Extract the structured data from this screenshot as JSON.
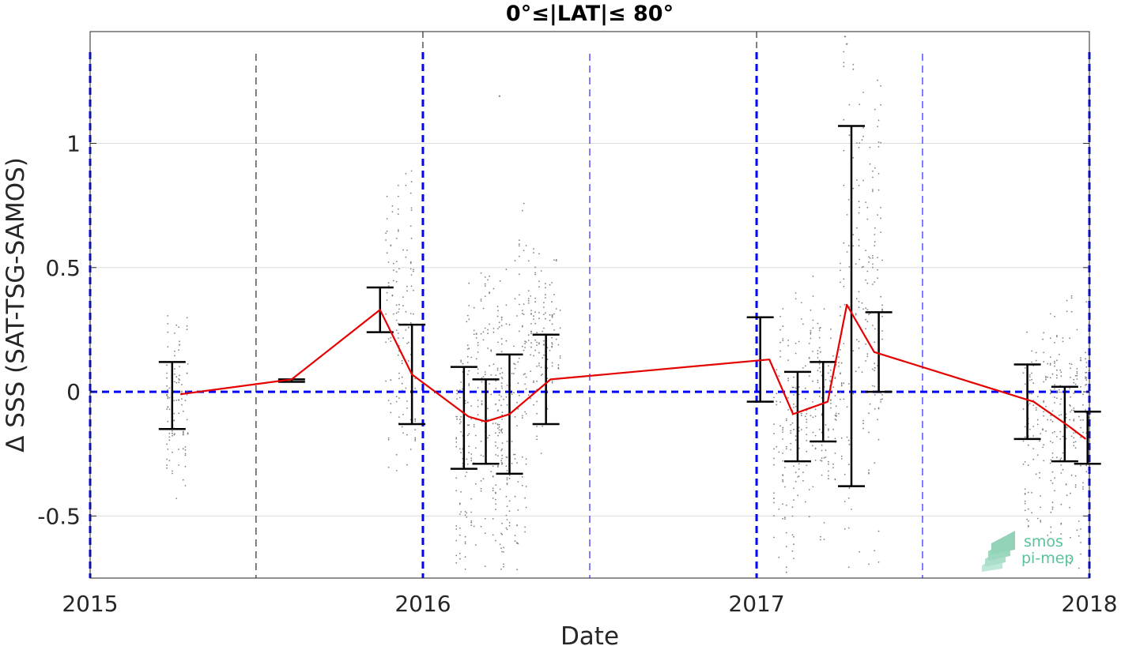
{
  "chart_data": {
    "type": "scatter",
    "title": "0°≤|LAT|≤ 80°",
    "xlabel": "Date",
    "ylabel": "Δ SSS (SAT-TSG-SAMOS)",
    "xlim": [
      "2015-01-01",
      "2018-01-01"
    ],
    "ylim": [
      -0.75,
      1.45
    ],
    "x_ticks": [
      "2015",
      "2016",
      "2017",
      "2018"
    ],
    "y_ticks": [
      {
        "value": -0.5,
        "label": "-0.5"
      },
      {
        "value": 0,
        "label": "0"
      },
      {
        "value": 0.5,
        "label": "0.5"
      },
      {
        "value": 1,
        "label": "1"
      }
    ],
    "grid": "horizontal",
    "zero_line_color": "#0000ff",
    "year_lines": [
      "2015-01-01",
      "2016-01-01",
      "2017-01-01",
      "2018-01-01"
    ],
    "midyear_lines": [
      "2015-07-02",
      "2016-07-02",
      "2017-07-02"
    ],
    "series": [
      {
        "type": "line",
        "color": "#e60000",
        "x": [
          "2015-04-10",
          "2015-08-10",
          "2015-11-15",
          "2015-12-20",
          "2016-02-20",
          "2016-03-10",
          "2016-04-05",
          "2016-05-20",
          "2017-01-15",
          "2017-02-10",
          "2017-03-20",
          "2017-04-10",
          "2017-05-10",
          "2017-11-01",
          "2017-12-10",
          "2017-12-28"
        ],
        "y": [
          -0.01,
          0.05,
          0.33,
          0.07,
          -0.1,
          -0.12,
          -0.09,
          0.05,
          0.13,
          -0.09,
          -0.04,
          0.35,
          0.16,
          -0.04,
          -0.14,
          -0.19
        ]
      },
      {
        "type": "errorbar",
        "color": "#000000",
        "x": [
          "2015-04-01",
          "2015-08-10",
          "2015-11-15",
          "2015-12-20",
          "2016-02-15",
          "2016-03-10",
          "2016-04-05",
          "2016-05-15",
          "2017-01-05",
          "2017-02-15",
          "2017-03-15",
          "2017-04-15",
          "2017-05-15",
          "2017-10-25",
          "2017-12-05",
          "2017-12-30"
        ],
        "lower": [
          -0.15,
          0.04,
          0.24,
          -0.13,
          -0.31,
          -0.29,
          -0.33,
          -0.13,
          -0.04,
          -0.28,
          -0.2,
          -0.38,
          0.0,
          -0.19,
          -0.28,
          -0.29
        ],
        "upper": [
          0.12,
          0.05,
          0.42,
          0.27,
          0.1,
          0.05,
          0.15,
          0.23,
          0.3,
          0.08,
          0.12,
          1.07,
          0.32,
          0.11,
          0.02,
          -0.08
        ]
      },
      {
        "type": "scatter",
        "color": "#808080",
        "clusters": [
          {
            "from": "2015-03-25",
            "to": "2015-04-20",
            "low": -0.45,
            "high": 0.36
          },
          {
            "from": "2015-11-20",
            "to": "2015-12-25",
            "low": -0.5,
            "high": 0.91
          },
          {
            "from": "2016-02-05",
            "to": "2016-03-30",
            "low": -0.72,
            "high": 0.48
          },
          {
            "from": "2016-03-20",
            "to": "2016-04-25",
            "low": -0.74,
            "high": 0.8
          },
          {
            "from": "2016-04-25",
            "to": "2016-05-31",
            "low": -0.25,
            "high": 0.64
          },
          {
            "from": "2017-01-20",
            "to": "2017-02-28",
            "low": -0.74,
            "high": 0.42
          },
          {
            "from": "2017-02-28",
            "to": "2017-04-05",
            "low": -0.6,
            "high": 0.52
          },
          {
            "from": "2017-04-05",
            "to": "2017-05-20",
            "low": -0.72,
            "high": 1.42
          },
          {
            "from": "2017-10-20",
            "to": "2017-11-25",
            "low": -0.6,
            "high": 0.32
          },
          {
            "from": "2017-11-25",
            "to": "2018-01-01",
            "low": -0.72,
            "high": 0.42
          }
        ],
        "outliers": [
          {
            "x": "2016-03-25",
            "y": 1.19
          },
          {
            "x": "2017-04-08",
            "y": 1.43
          },
          {
            "x": "2017-04-10",
            "y": 1.4
          }
        ]
      }
    ]
  },
  "watermark": {
    "line1": "smos",
    "line2": "pi-mep",
    "color": "#5cc29a"
  }
}
